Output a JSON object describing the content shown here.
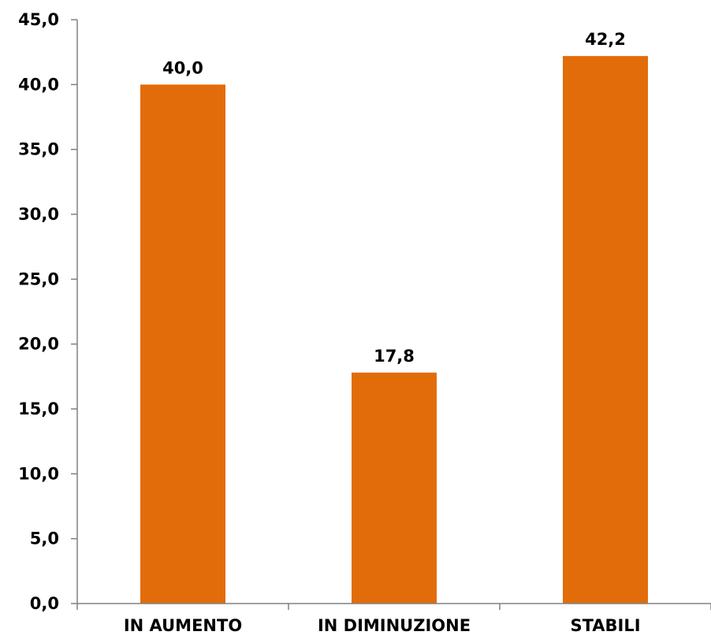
{
  "chart_data": {
    "type": "bar",
    "categories": [
      "IN AUMENTO",
      "IN DIMINUZIONE",
      "STABILI"
    ],
    "values": [
      40.0,
      17.8,
      42.2
    ],
    "data_labels": [
      "40,0",
      "17,8",
      "42,2"
    ],
    "title": "",
    "xlabel": "",
    "ylabel": "",
    "ylim": [
      0,
      45
    ],
    "yticks": [
      0,
      5,
      10,
      15,
      20,
      25,
      30,
      35,
      40,
      45
    ],
    "ytick_labels": [
      "0,0",
      "5,0",
      "10,0",
      "15,0",
      "20,0",
      "25,0",
      "30,0",
      "35,0",
      "40,0",
      "45,0"
    ],
    "grid": false,
    "legend": "none",
    "bar_color": "#E36C0A",
    "axis_color": "#808080"
  }
}
